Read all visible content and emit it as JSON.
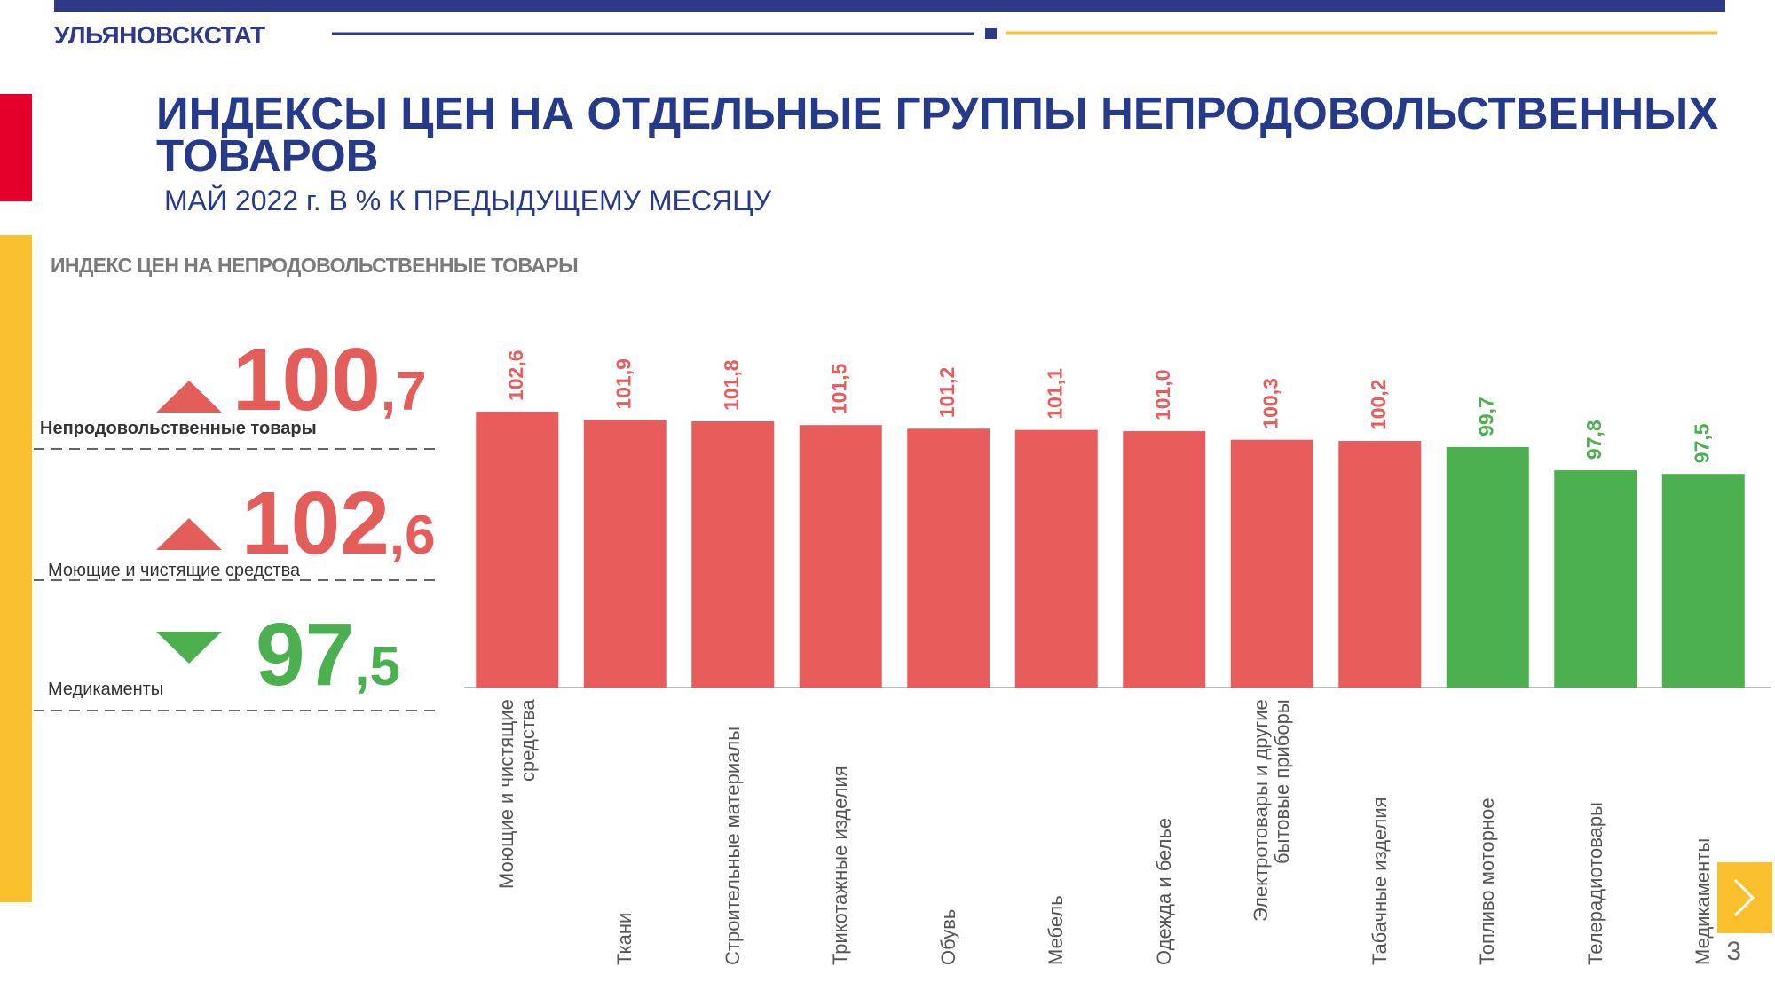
{
  "header": {
    "org": "УЛЬЯНОВСКСТАТ",
    "title": "ИНДЕКСЫ ЦЕН НА ОТДЕЛЬНЫЕ ГРУППЫ  НЕПРОДОВОЛЬСТВЕННЫХ ТОВАРОВ",
    "subtitle": "МАЙ 2022 г. В % К ПРЕДЫДУЩЕМУ МЕСЯЦУ"
  },
  "section": "ИНДЕКС ЦЕН НА НЕПРОДОВОЛЬСТВЕННЫЕ ТОВАРЫ",
  "kpis": [
    {
      "value": "100,7",
      "label": "Непродовольственные товары",
      "direction": "up",
      "color": "#e35d5b"
    },
    {
      "value": "102,6",
      "label": "Моющие и чистящие средства",
      "direction": "up",
      "color": "#e35d5b"
    },
    {
      "value": "97,5",
      "label": "Медикаменты",
      "direction": "down",
      "color": "#4caf50"
    }
  ],
  "chart_data": {
    "type": "bar",
    "categories": [
      "Моющие и чистящие средства",
      "Ткани",
      "Строительные материалы",
      "Трикотажные изделия",
      "Обувь",
      "Мебель",
      "Одежда и белье",
      "Электротовары и другие бытовые приборы",
      "Табачные изделия",
      "Топливо моторное",
      "Телерадиотовары",
      "Медикаменты"
    ],
    "values": [
      102.6,
      101.9,
      101.8,
      101.5,
      101.2,
      101.1,
      101.0,
      100.3,
      100.2,
      99.7,
      97.8,
      97.5
    ],
    "value_labels": [
      "102,6",
      "101,9",
      "101,8",
      "101,5",
      "101,2",
      "101,1",
      "101,0",
      "100,3",
      "100,2",
      "99,7",
      "97,8",
      "97,5"
    ],
    "colors": [
      "#e85c5c",
      "#e85c5c",
      "#e85c5c",
      "#e85c5c",
      "#e85c5c",
      "#e85c5c",
      "#e85c5c",
      "#e85c5c",
      "#e85c5c",
      "#4caf50",
      "#4caf50",
      "#4caf50"
    ],
    "ylim": [
      80,
      105
    ]
  },
  "page_number": "3"
}
